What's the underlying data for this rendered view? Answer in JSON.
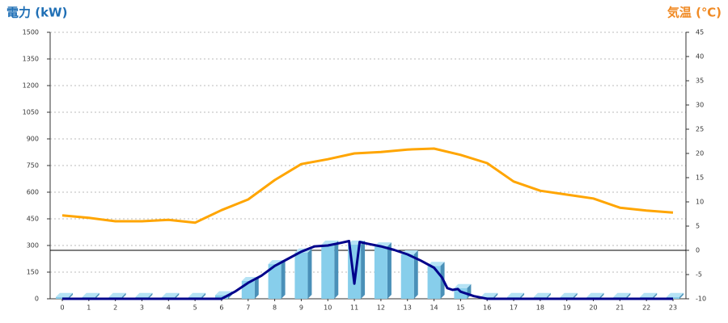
{
  "chart_data": {
    "type": "combo",
    "y_title": "電力 (kW)",
    "y2_title": "気温 (℃)",
    "categories": [
      "0",
      "1",
      "2",
      "3",
      "4",
      "5",
      "6",
      "7",
      "8",
      "9",
      "10",
      "11",
      "12",
      "13",
      "14",
      "15",
      "16",
      "17",
      "18",
      "19",
      "20",
      "21",
      "22",
      "23"
    ],
    "ylim": [
      0,
      1500
    ],
    "yticks": [
      0,
      150,
      300,
      450,
      600,
      750,
      900,
      1050,
      1200,
      1350,
      1500
    ],
    "y2lim": [
      -10,
      45
    ],
    "y2ticks": [
      -10,
      -5,
      0,
      5,
      10,
      15,
      20,
      25,
      30,
      35,
      40,
      45
    ],
    "grid": true,
    "reference_line": {
      "axis": "y2",
      "value": 0
    },
    "series": [
      {
        "type": "bar",
        "color": "#87ceeb",
        "values": [
          10,
          10,
          10,
          10,
          10,
          10,
          20,
          100,
          195,
          260,
          305,
          305,
          295,
          250,
          185,
          60,
          10,
          10,
          10,
          10,
          10,
          10,
          10,
          10
        ]
      },
      {
        "type": "line",
        "color": "#00008b",
        "x": [
          0,
          6,
          6.5,
          7,
          7.5,
          8,
          8.5,
          9,
          9.5,
          10,
          10.5,
          10.8,
          11,
          11.2,
          11.5,
          12,
          12.5,
          13,
          13.5,
          14,
          14.3,
          14.5,
          14.7,
          14.9,
          15,
          15.5,
          16,
          23
        ],
        "values": [
          0,
          0,
          40,
          90,
          130,
          185,
          225,
          265,
          295,
          300,
          315,
          325,
          85,
          320,
          310,
          295,
          275,
          250,
          215,
          175,
          120,
          60,
          50,
          55,
          40,
          15,
          0,
          0
        ]
      },
      {
        "type": "line",
        "color": "#ffa500",
        "axis": "y2",
        "values": [
          7.2,
          6.7,
          6.0,
          6.0,
          6.3,
          5.7,
          8.3,
          10.5,
          14.5,
          17.8,
          18.8,
          20.0,
          20.3,
          20.8,
          21.0,
          19.7,
          18.0,
          14.2,
          12.3,
          11.5,
          10.7,
          8.8,
          8.2,
          7.8
        ]
      }
    ]
  }
}
